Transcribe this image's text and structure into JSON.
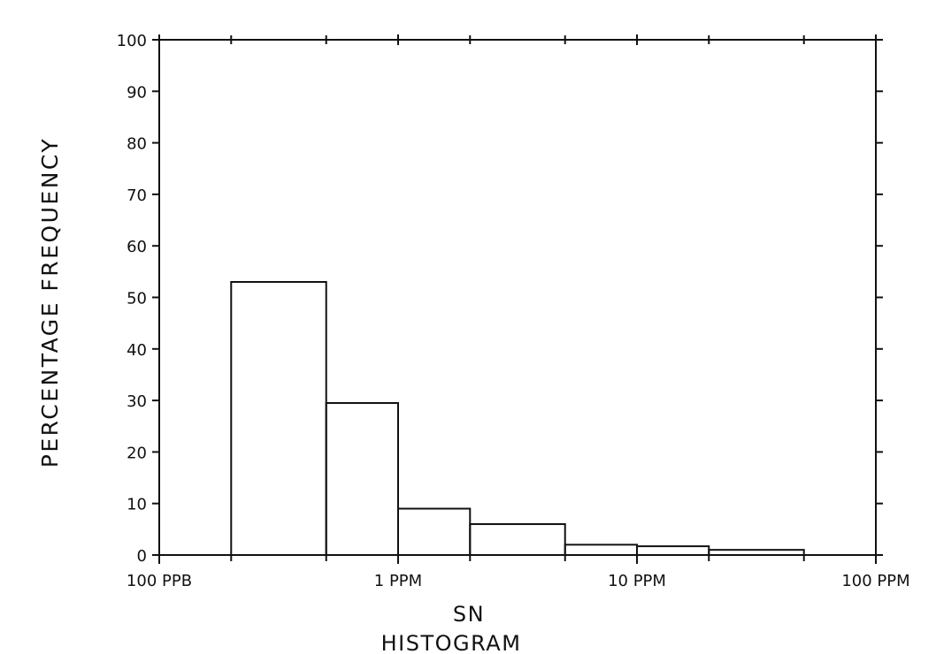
{
  "chart_data": {
    "type": "bar",
    "title": "HISTOGRAM",
    "subtitle": "SN",
    "xlabel": "SN",
    "ylabel": "PERCENTAGE FREQUENCY",
    "x_scale": "log",
    "x_unit": "ppm",
    "xlim": [
      0.1,
      100
    ],
    "ylim": [
      0,
      100
    ],
    "y_ticks": [
      0,
      10,
      20,
      30,
      40,
      50,
      60,
      70,
      80,
      90,
      100
    ],
    "x_labeled_ticks": [
      {
        "value": 0.1,
        "label": "100 PPB"
      },
      {
        "value": 1,
        "label": "1 PPM"
      },
      {
        "value": 10,
        "label": "10 PPM"
      },
      {
        "value": 100,
        "label": "100 PPM"
      }
    ],
    "x_minor_ticks": [
      0.2,
      0.5,
      2,
      5,
      20,
      50
    ],
    "bins": [
      {
        "from": 0.2,
        "to": 0.5,
        "value": 53
      },
      {
        "from": 0.5,
        "to": 1,
        "value": 29.5
      },
      {
        "from": 1,
        "to": 2,
        "value": 9
      },
      {
        "from": 2,
        "to": 5,
        "value": 6
      },
      {
        "from": 5,
        "to": 10,
        "value": 2
      },
      {
        "from": 10,
        "to": 20,
        "value": 1.7
      },
      {
        "from": 20,
        "to": 50,
        "value": 1
      }
    ],
    "grid": false,
    "colors": {
      "line": "#111111",
      "background": "#ffffff"
    }
  }
}
